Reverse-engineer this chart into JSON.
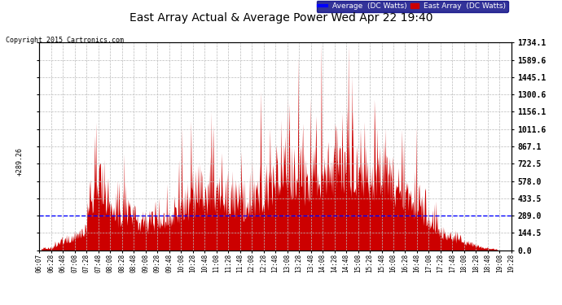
{
  "title": "East Array Actual & Average Power Wed Apr 22 19:40",
  "copyright": "Copyright 2015 Cartronics.com",
  "legend_avg": "Average  (DC Watts)",
  "legend_east": "East Array  (DC Watts)",
  "avg_value": 289.26,
  "y_ticks": [
    0.0,
    144.5,
    289.0,
    433.5,
    578.0,
    722.5,
    867.1,
    1011.6,
    1156.1,
    1300.6,
    1445.1,
    1589.6,
    1734.1
  ],
  "y_max": 1734.1,
  "y_min": 0.0,
  "background_color": "#ffffff",
  "plot_bg_color": "#ffffff",
  "fill_color": "#cc0000",
  "avg_line_color": "#0000ff",
  "grid_color": "#bbbbbb",
  "title_color": "#000000",
  "x_labels": [
    "06:07",
    "06:28",
    "06:48",
    "07:08",
    "07:28",
    "07:48",
    "08:08",
    "08:28",
    "08:48",
    "09:08",
    "09:28",
    "09:48",
    "10:08",
    "10:28",
    "10:48",
    "11:08",
    "11:28",
    "11:48",
    "12:08",
    "12:28",
    "12:48",
    "13:08",
    "13:28",
    "13:48",
    "14:08",
    "14:28",
    "14:48",
    "15:08",
    "15:28",
    "15:48",
    "16:08",
    "16:28",
    "16:48",
    "17:08",
    "17:28",
    "17:48",
    "18:08",
    "18:28",
    "18:48",
    "19:08",
    "19:28"
  ]
}
